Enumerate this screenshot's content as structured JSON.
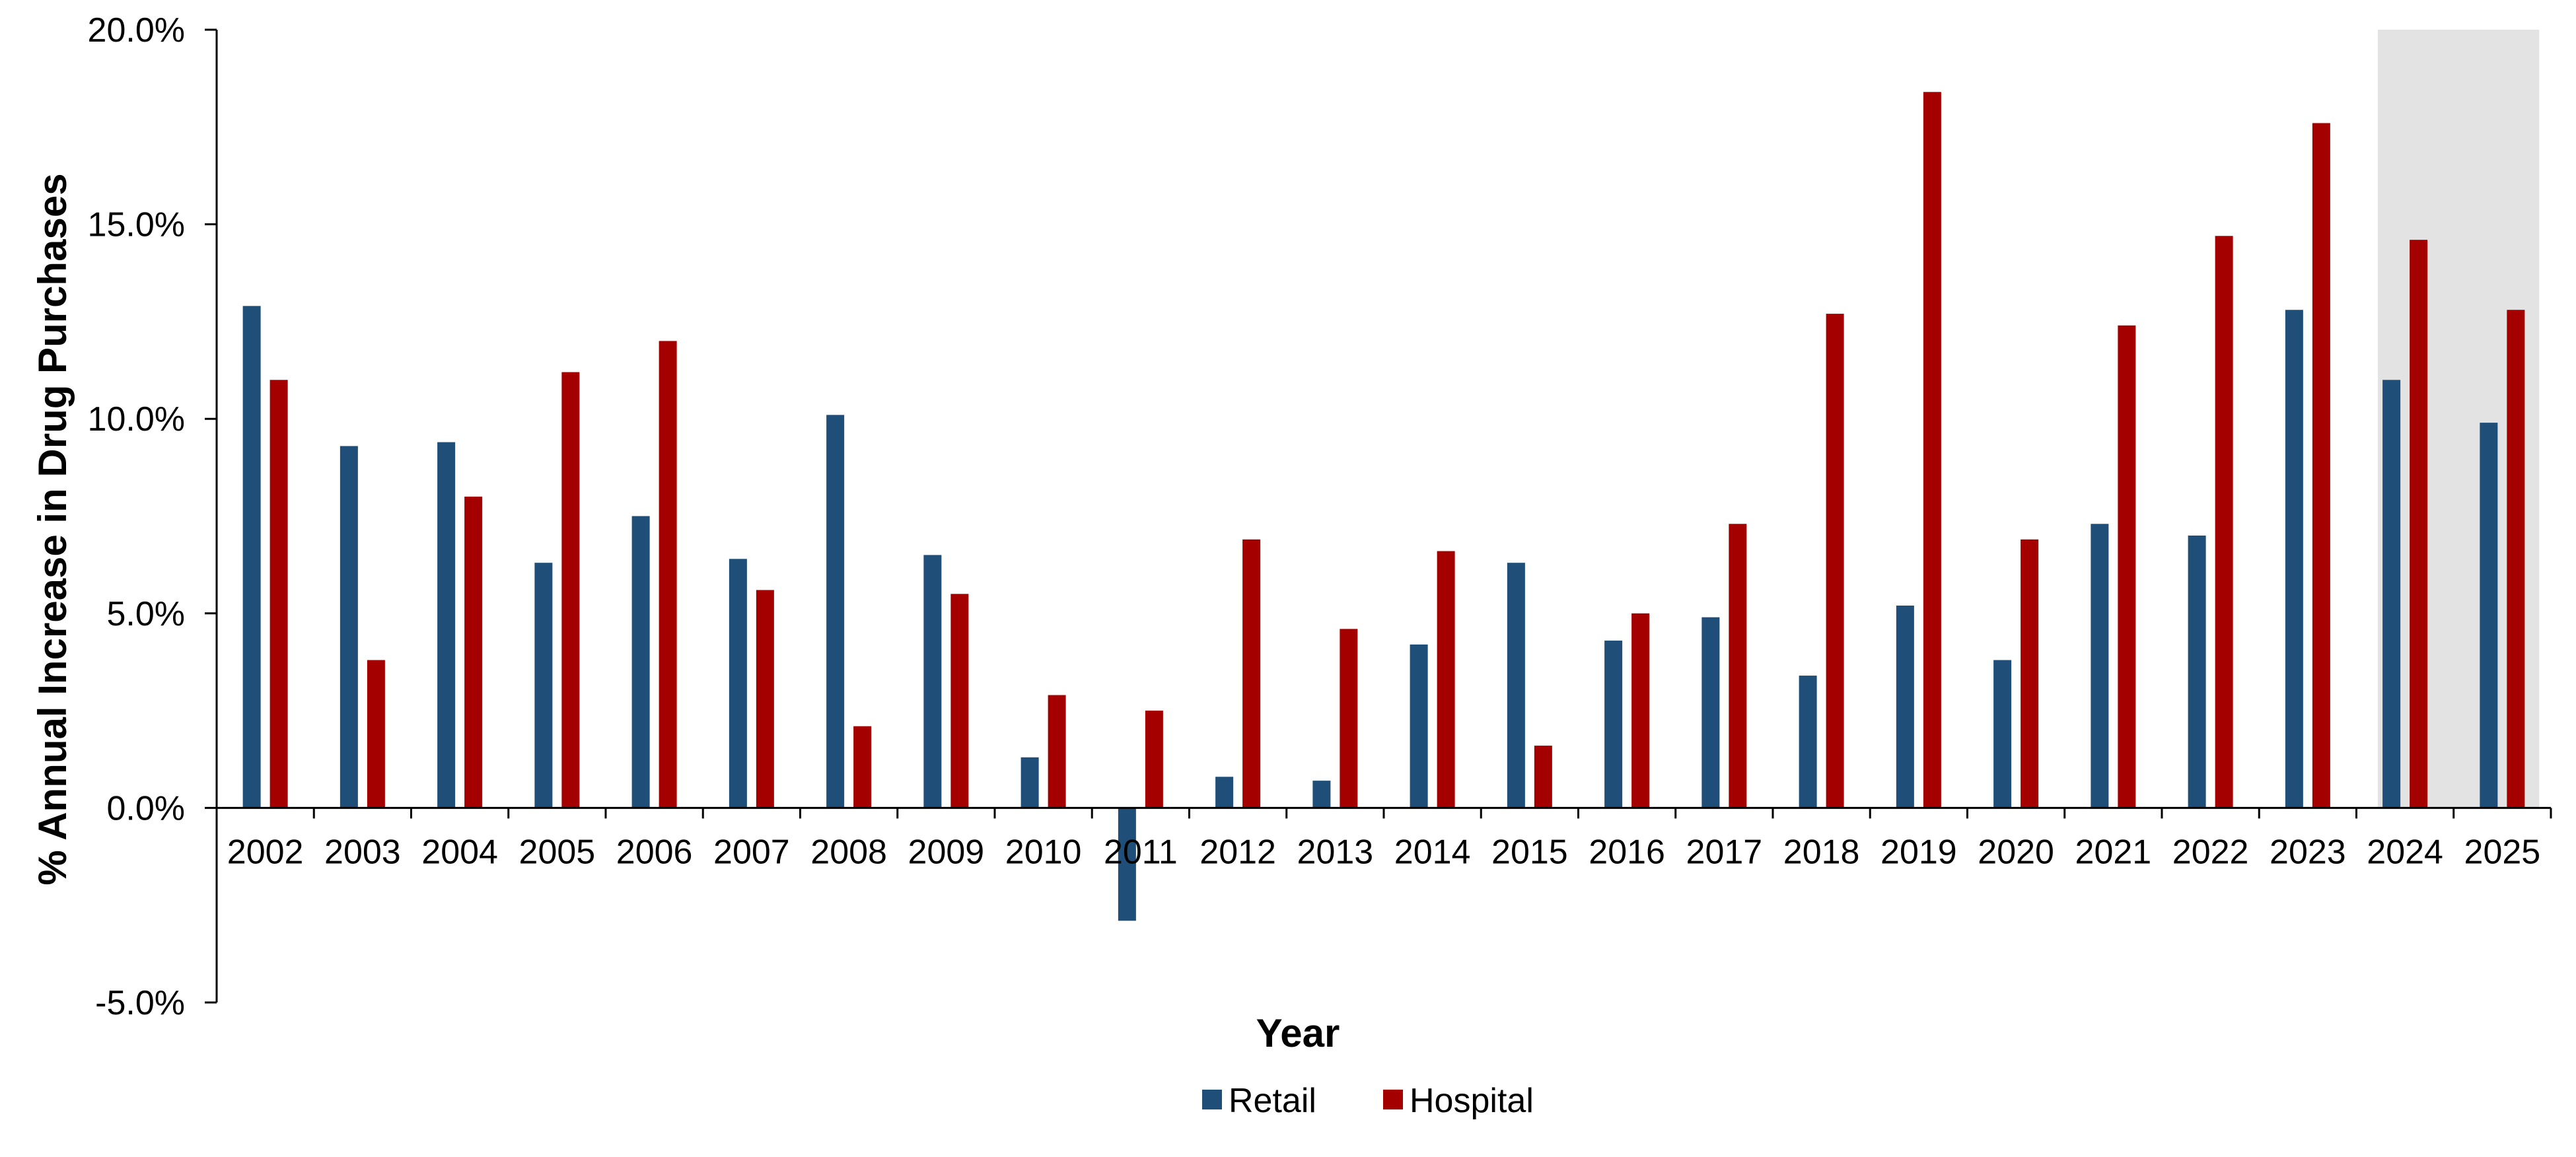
{
  "chart_data": {
    "type": "bar",
    "title": "",
    "xlabel": "Year",
    "ylabel": "% Annual Increase in Drug Purchases",
    "ylim": [
      -5.0,
      20.0
    ],
    "y_ticks": [
      "20.0%",
      "15.0%",
      "10.0%",
      "5.0%",
      "0.0%",
      "-5.0%"
    ],
    "y_tick_values": [
      20,
      15,
      10,
      5,
      0,
      -5
    ],
    "grid": false,
    "legend_position": "bottom-center",
    "shaded_categories": [
      "2024",
      "2025"
    ],
    "shade_color": "#e3e3e3",
    "categories": [
      "2002",
      "2003",
      "2004",
      "2005",
      "2006",
      "2007",
      "2008",
      "2009",
      "2010",
      "2011",
      "2012",
      "2013",
      "2014",
      "2015",
      "2016",
      "2017",
      "2018",
      "2019",
      "2020",
      "2021",
      "2022",
      "2023",
      "2024",
      "2025"
    ],
    "series": [
      {
        "name": "Retail",
        "color": "#1f4e79",
        "values": [
          12.9,
          9.3,
          9.4,
          6.3,
          7.5,
          6.4,
          10.1,
          6.5,
          1.3,
          -2.9,
          0.8,
          0.7,
          4.2,
          6.3,
          4.3,
          4.9,
          3.4,
          5.2,
          3.8,
          7.3,
          7.0,
          12.8,
          11.0,
          9.9
        ]
      },
      {
        "name": "Hospital",
        "color": "#a50000",
        "values": [
          11.0,
          3.8,
          8.0,
          11.2,
          12.0,
          5.6,
          2.1,
          5.5,
          2.9,
          2.5,
          6.9,
          4.6,
          6.6,
          1.6,
          5.0,
          7.3,
          12.7,
          18.4,
          6.9,
          12.4,
          14.7,
          17.6,
          14.6,
          12.8
        ]
      }
    ]
  }
}
